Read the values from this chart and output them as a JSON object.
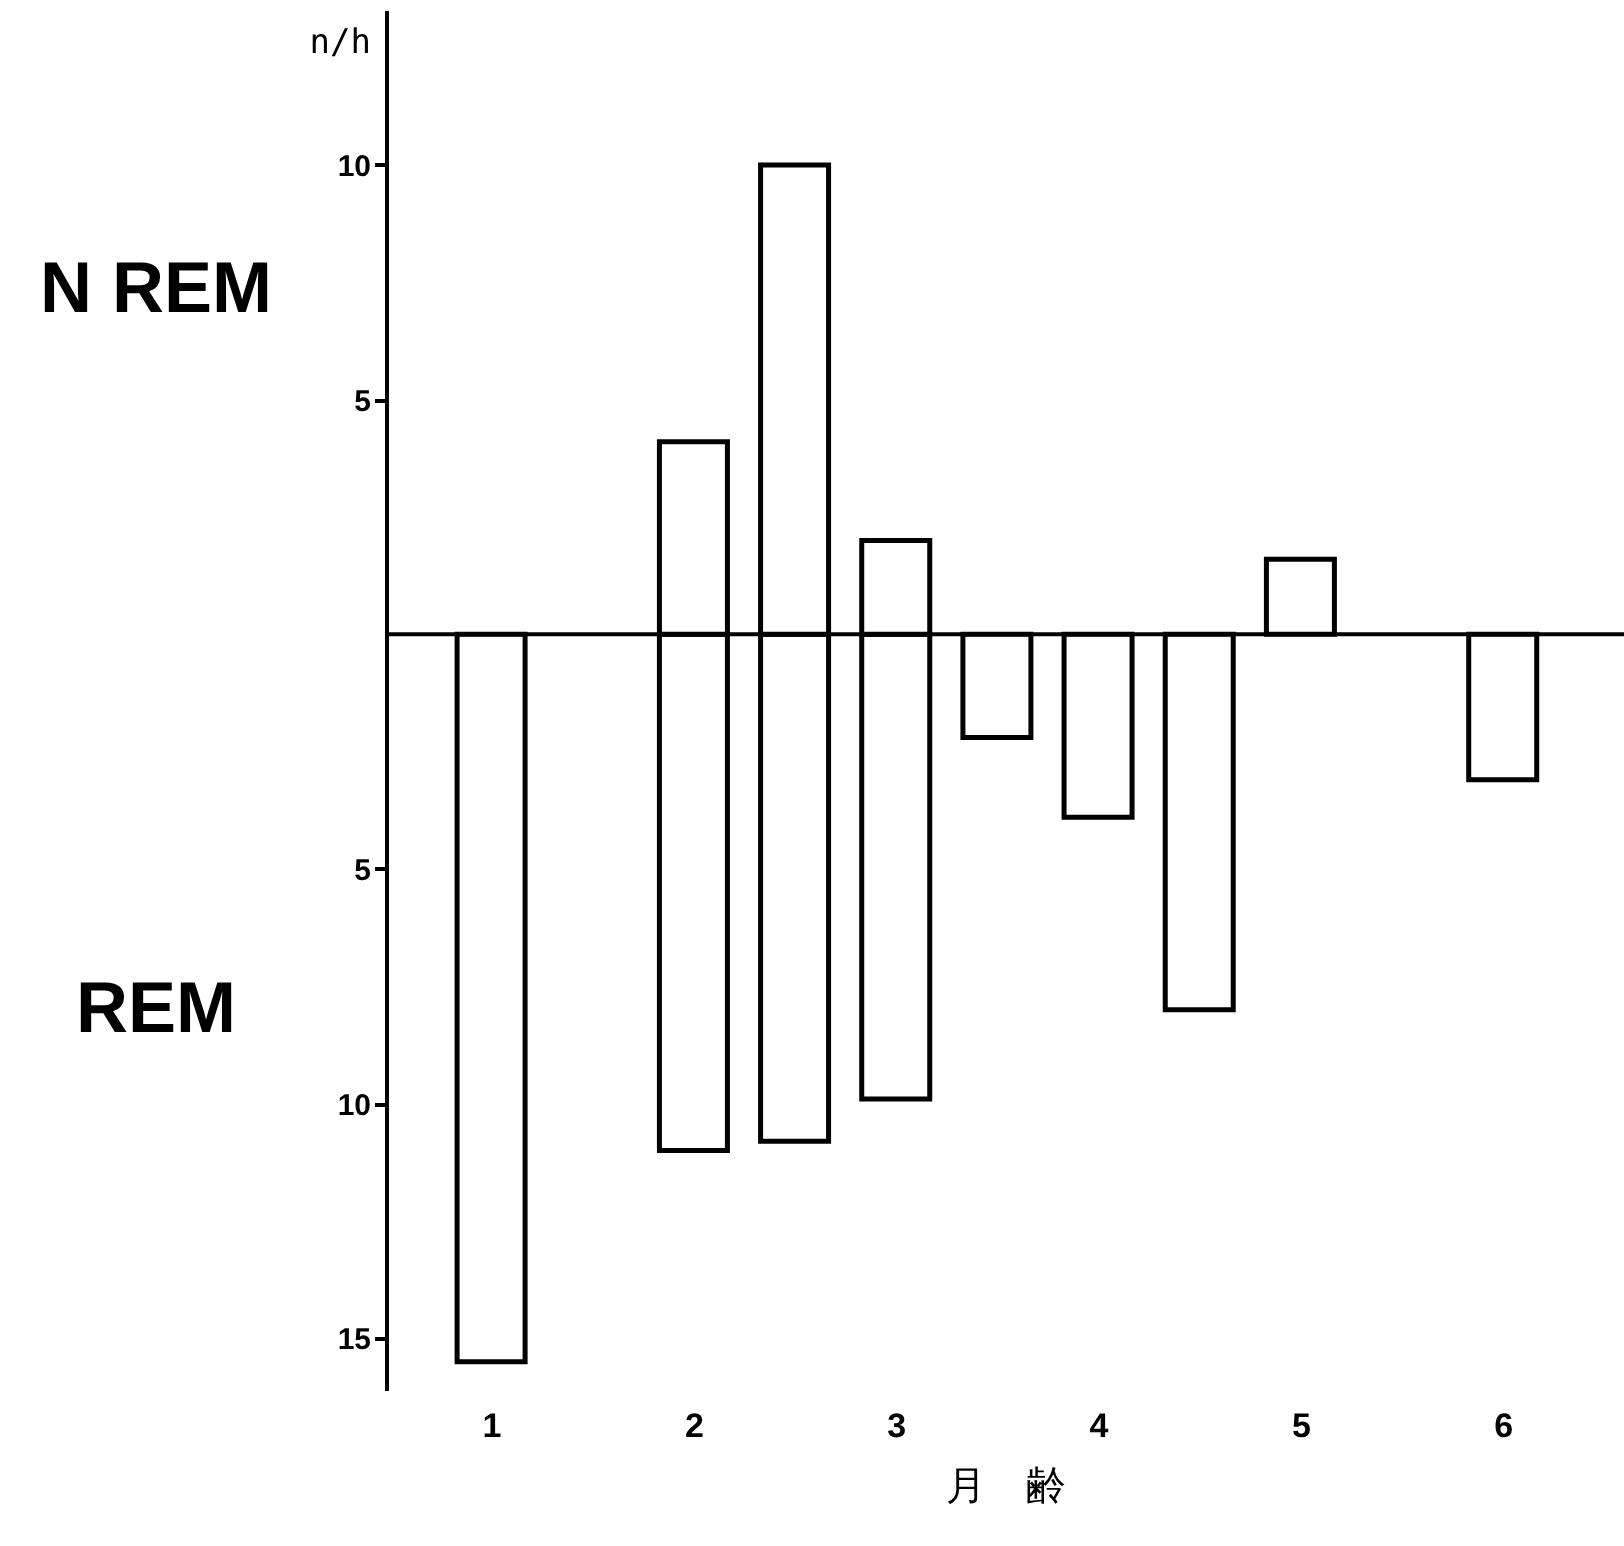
{
  "chart_data": {
    "type": "bar",
    "xlabel": "月　齢",
    "ylabel": "n/h",
    "series": [
      {
        "color": "#ffffff",
        "x": [
          1,
          2,
          2.5,
          3,
          3.5,
          4,
          4.5,
          6
        ],
        "values": [
          -15.5,
          -11,
          -10.8,
          -9.9,
          -2.2,
          -3.9,
          -8,
          -3.1
        ]
      },
      {
        "color": "#ffffff",
        "x": [
          2,
          2.5,
          3,
          5
        ],
        "values": [
          4.1,
          10,
          2,
          1.6
        ]
      }
    ],
    "annotations": [
      "N REM",
      "REM"
    ],
    "xlim": [
      0.53,
      6.55
    ],
    "xticks": [
      1,
      2,
      3,
      4,
      5,
      6
    ],
    "ylim": [
      -16.1,
      13.3
    ],
    "yticks": [
      {
        "value": 10,
        "label": "10"
      },
      {
        "value": 5,
        "label": "5"
      },
      {
        "value": -5,
        "label": "5"
      },
      {
        "value": -10,
        "label": "10"
      },
      {
        "value": -15,
        "label": "15"
      }
    ],
    "grid": false
  }
}
